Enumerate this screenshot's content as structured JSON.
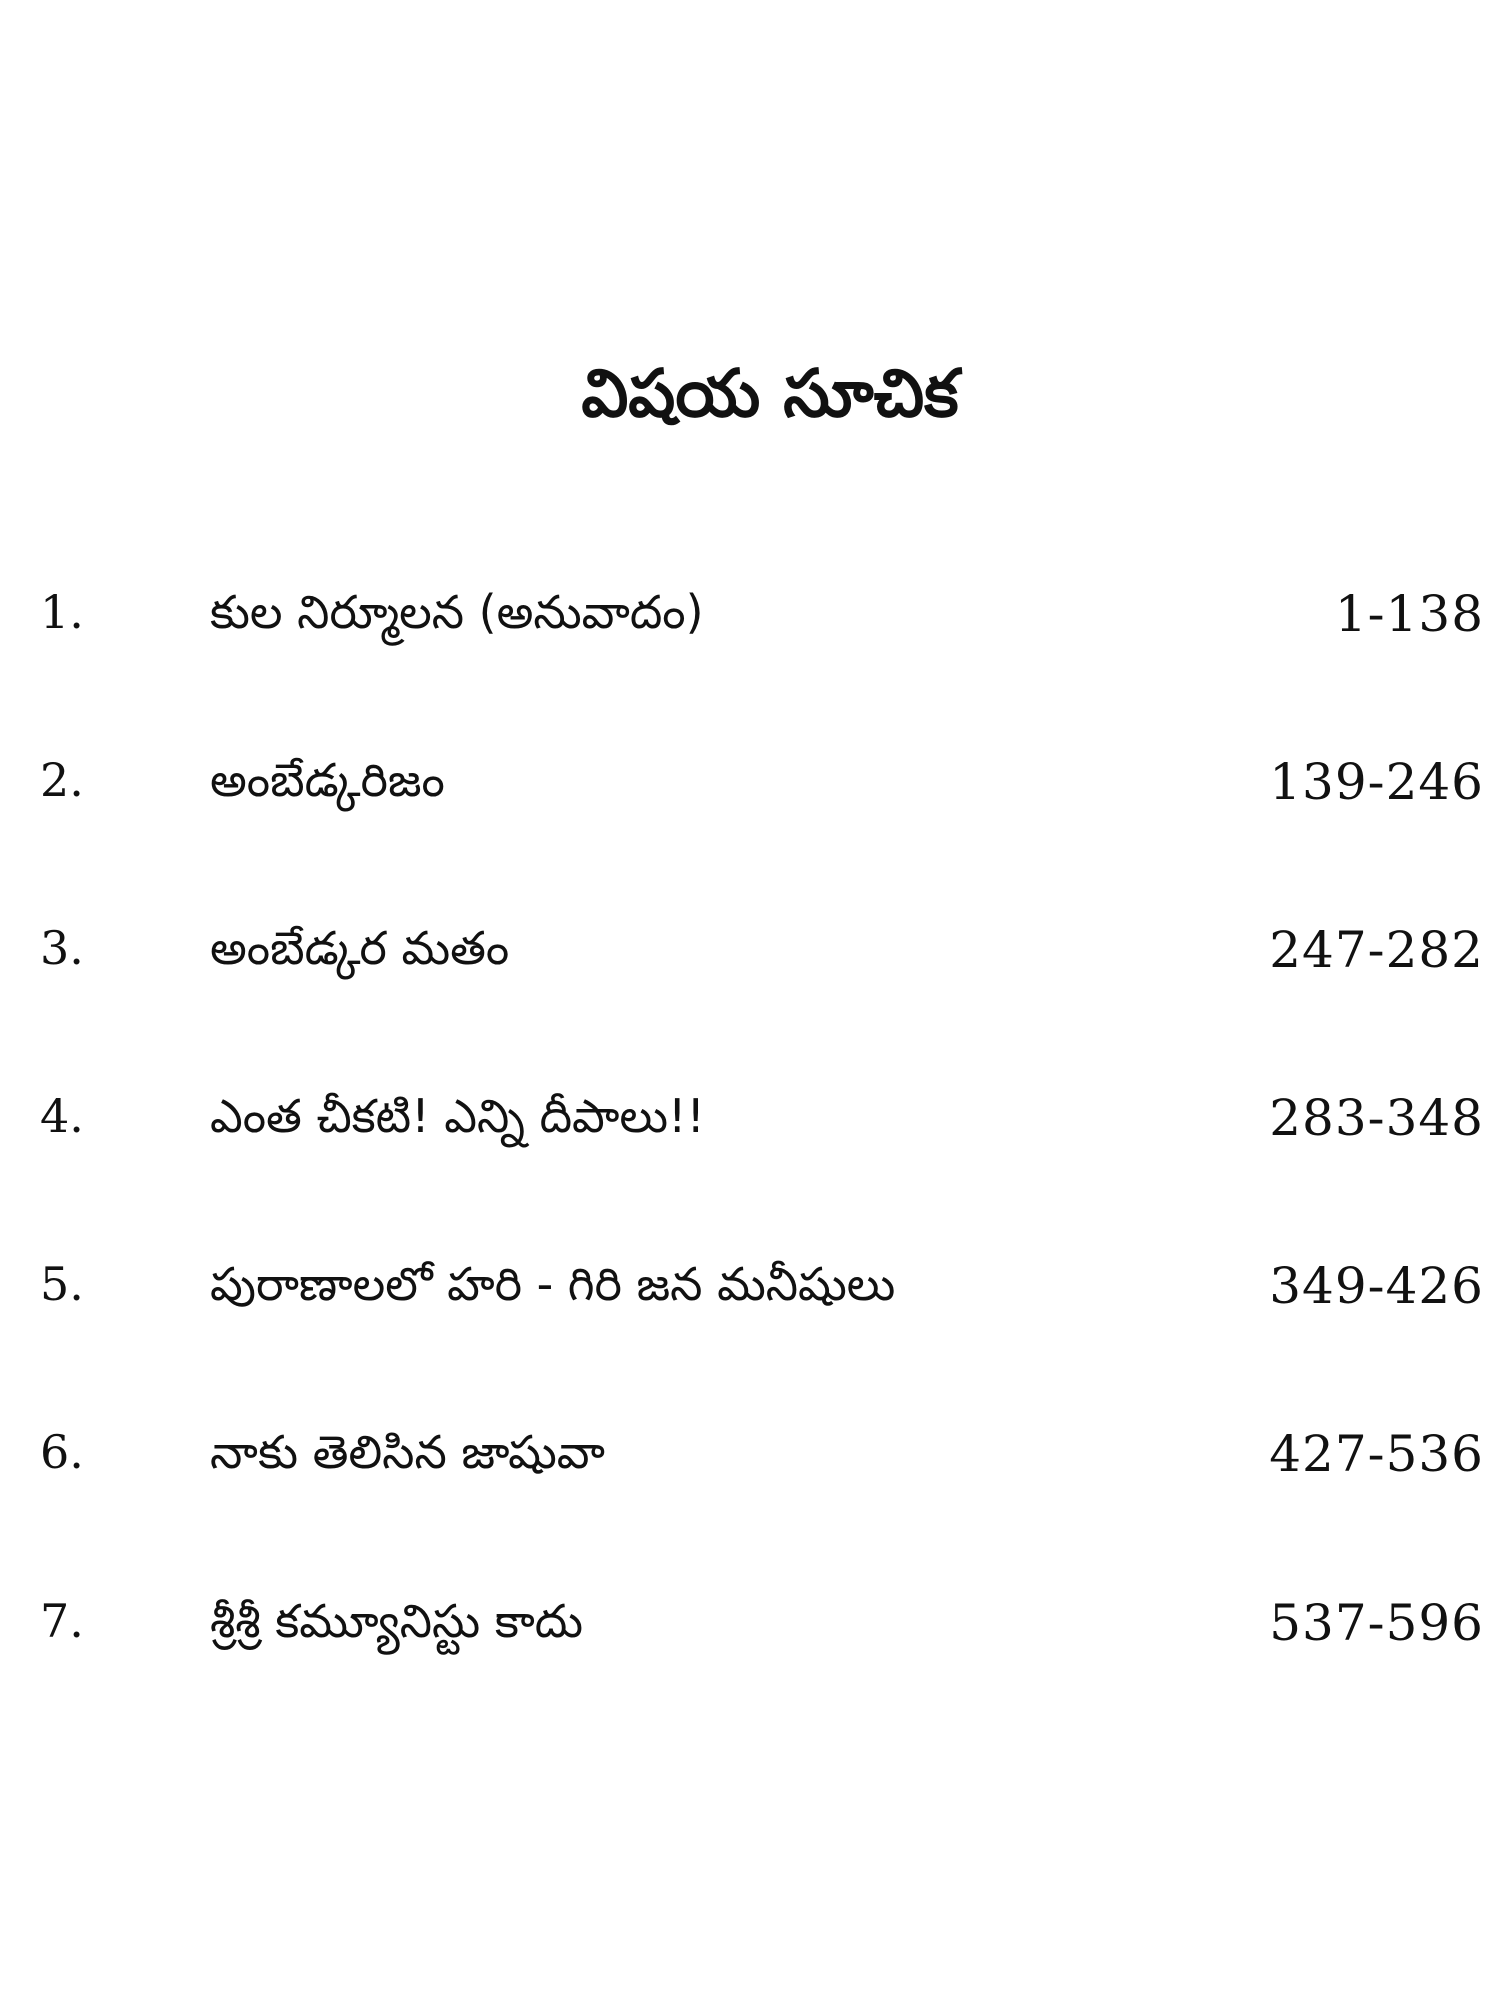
{
  "title": "విషయ సూచిక",
  "contents": [
    {
      "number": "1.",
      "name": "కుల నిర్మూలన (అనువాదం)",
      "pages": "1-138"
    },
    {
      "number": "2.",
      "name": "అంబేడ్కరిజం",
      "pages": "139-246"
    },
    {
      "number": "3.",
      "name": "అంబేడ్కర మతం",
      "pages": "247-282"
    },
    {
      "number": "4.",
      "name": "ఎంత చీకటి! ఎన్ని దీపాలు!!",
      "pages": "283-348"
    },
    {
      "number": "5.",
      "name": "పురాణాలలో హరి - గిరి జన మనీషులు",
      "pages": "349-426"
    },
    {
      "number": "6.",
      "name": "నాకు తెలిసిన జాషువా",
      "pages": "427-536"
    },
    {
      "number": "7.",
      "name": "శ్రీశ్రీ కమ్యూనిస్టు కాదు",
      "pages": "537-596"
    }
  ]
}
